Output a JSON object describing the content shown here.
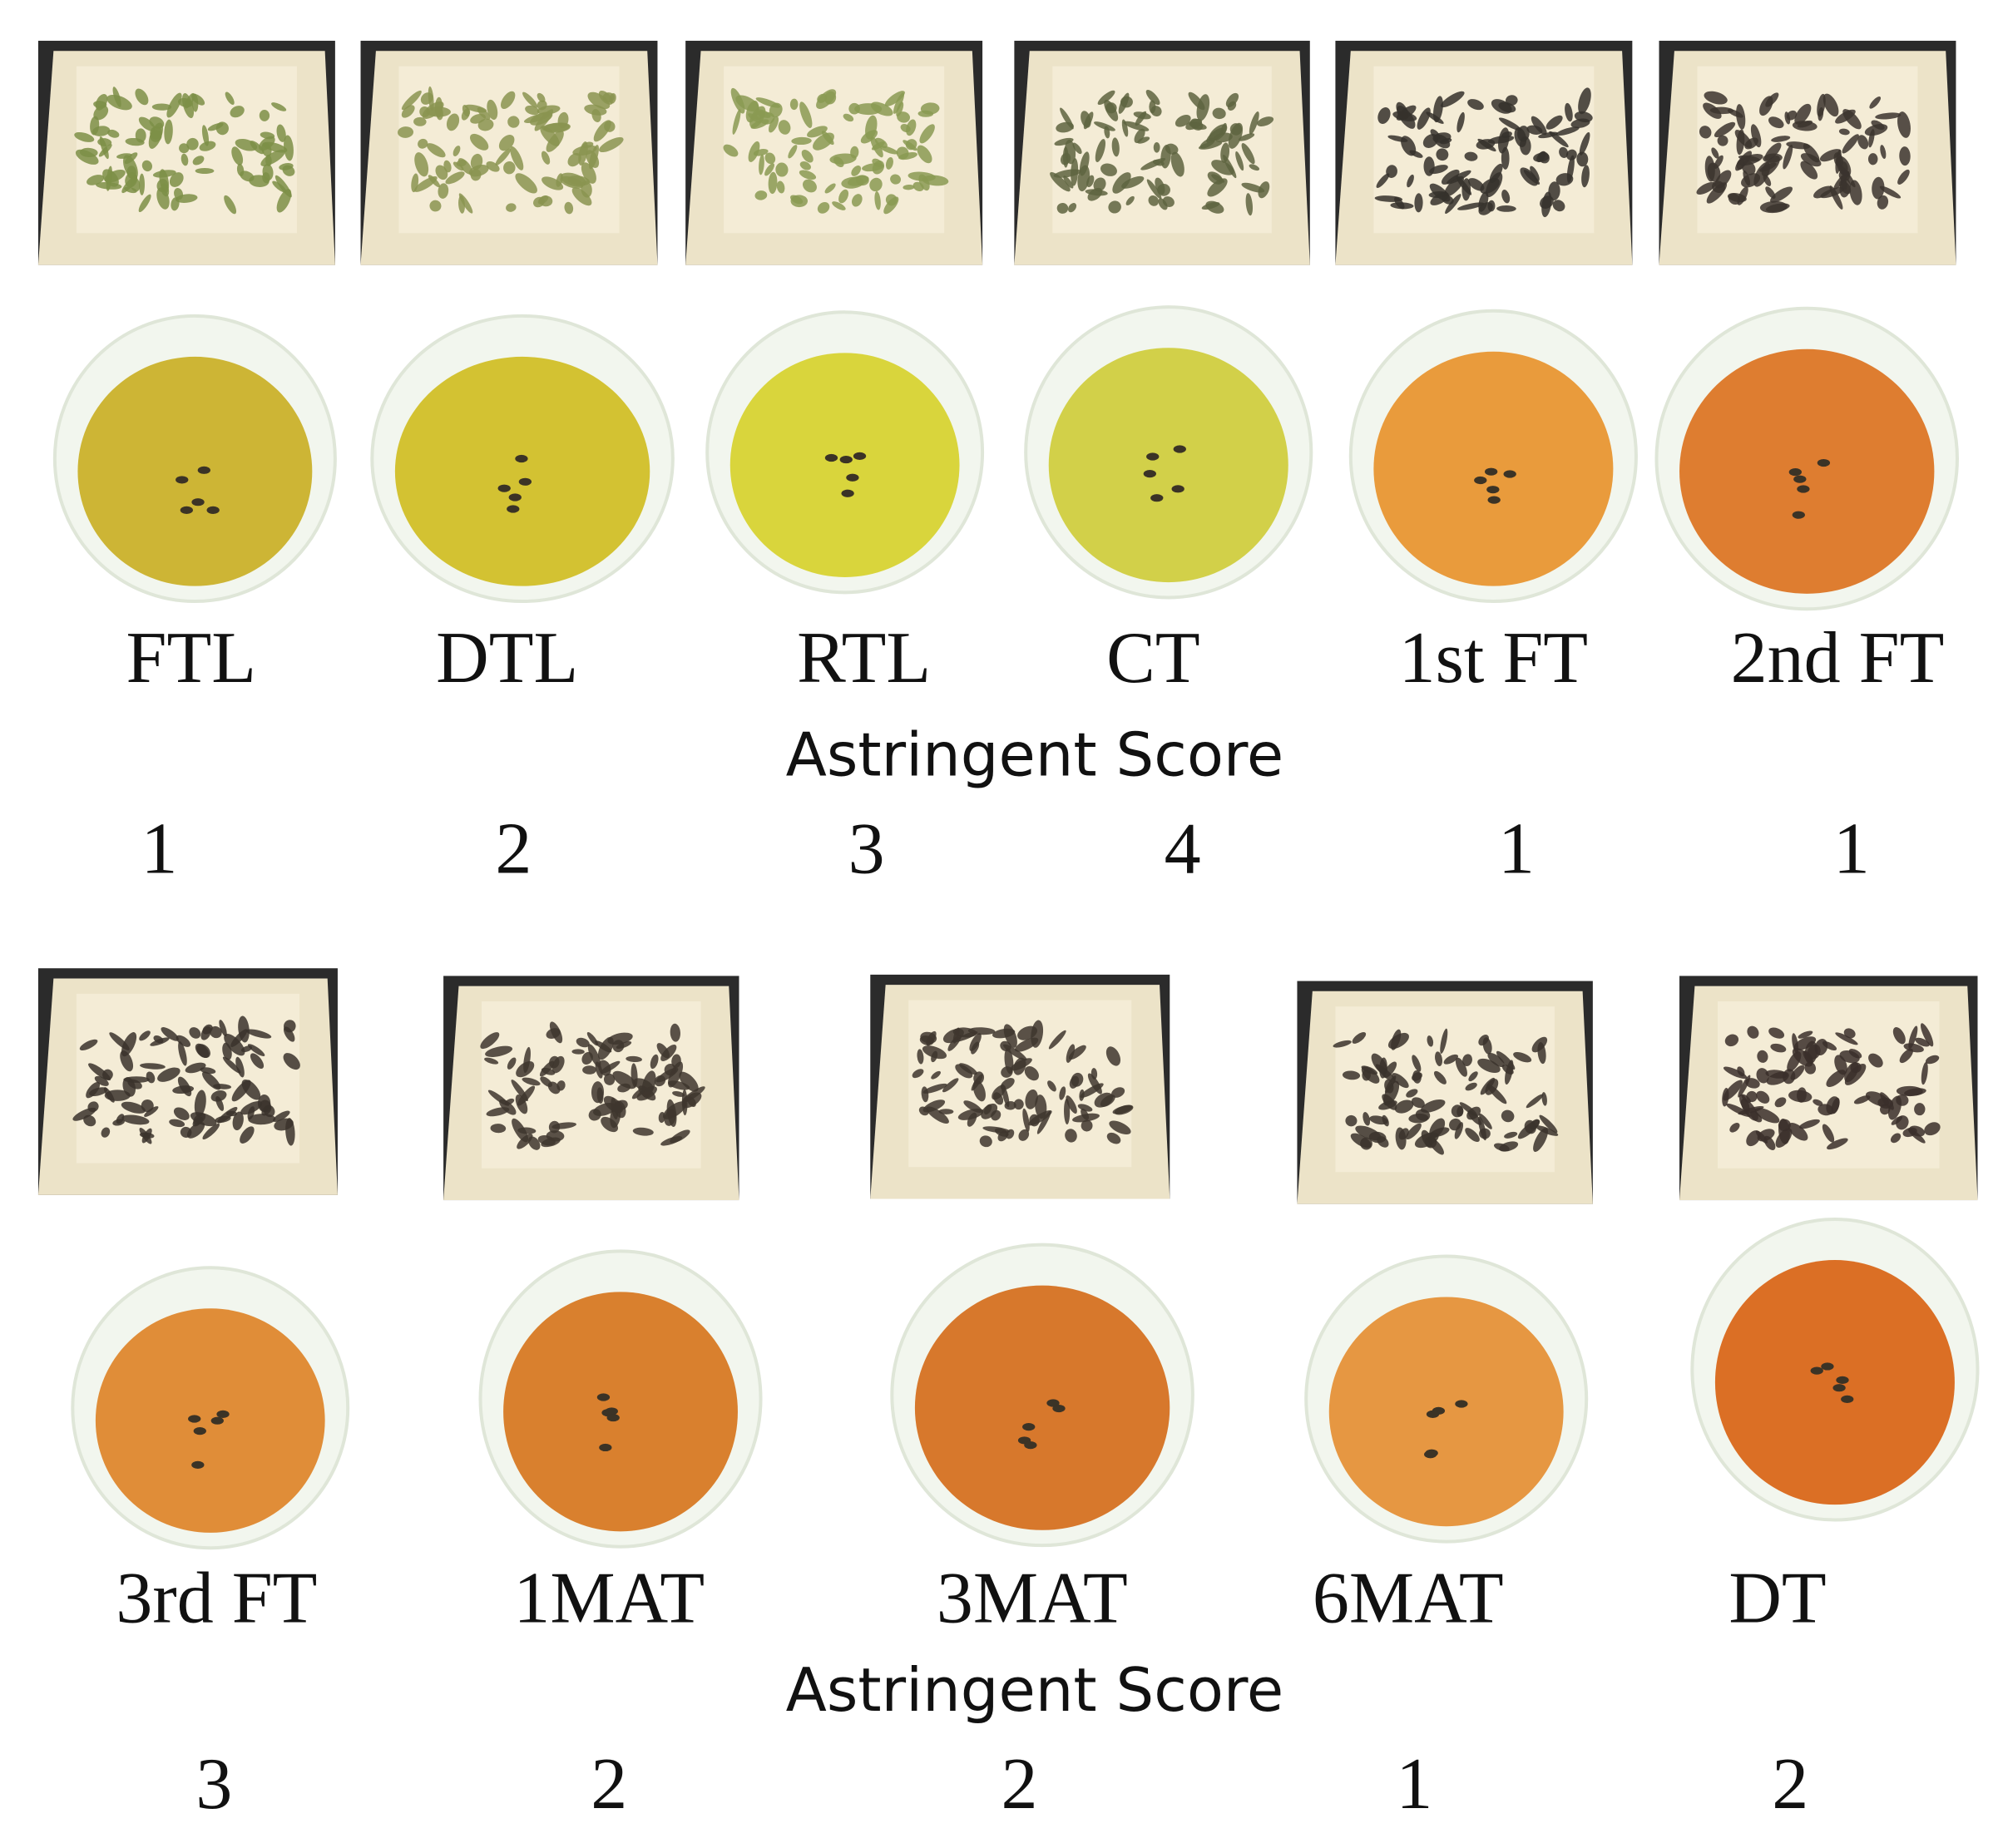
{
  "rows": [
    {
      "samples": [
        {
          "label": "FTL",
          "score": 1
        },
        {
          "label": "DTL",
          "score": 2
        },
        {
          "label": "RTL",
          "score": 3
        },
        {
          "label": "CT",
          "score": 4
        },
        {
          "label": "1st FT",
          "score": 1
        },
        {
          "label": "2nd FT",
          "score": 1
        }
      ],
      "score_heading": "Astringent Score"
    },
    {
      "samples": [
        {
          "label": "3rd FT",
          "score": 3
        },
        {
          "label": "1MAT",
          "score": 2
        },
        {
          "label": "3MAT",
          "score": 2
        },
        {
          "label": "6MAT",
          "score": 1
        },
        {
          "label": "DT",
          "score": 2
        }
      ],
      "score_heading": "Astringent Score"
    }
  ]
}
